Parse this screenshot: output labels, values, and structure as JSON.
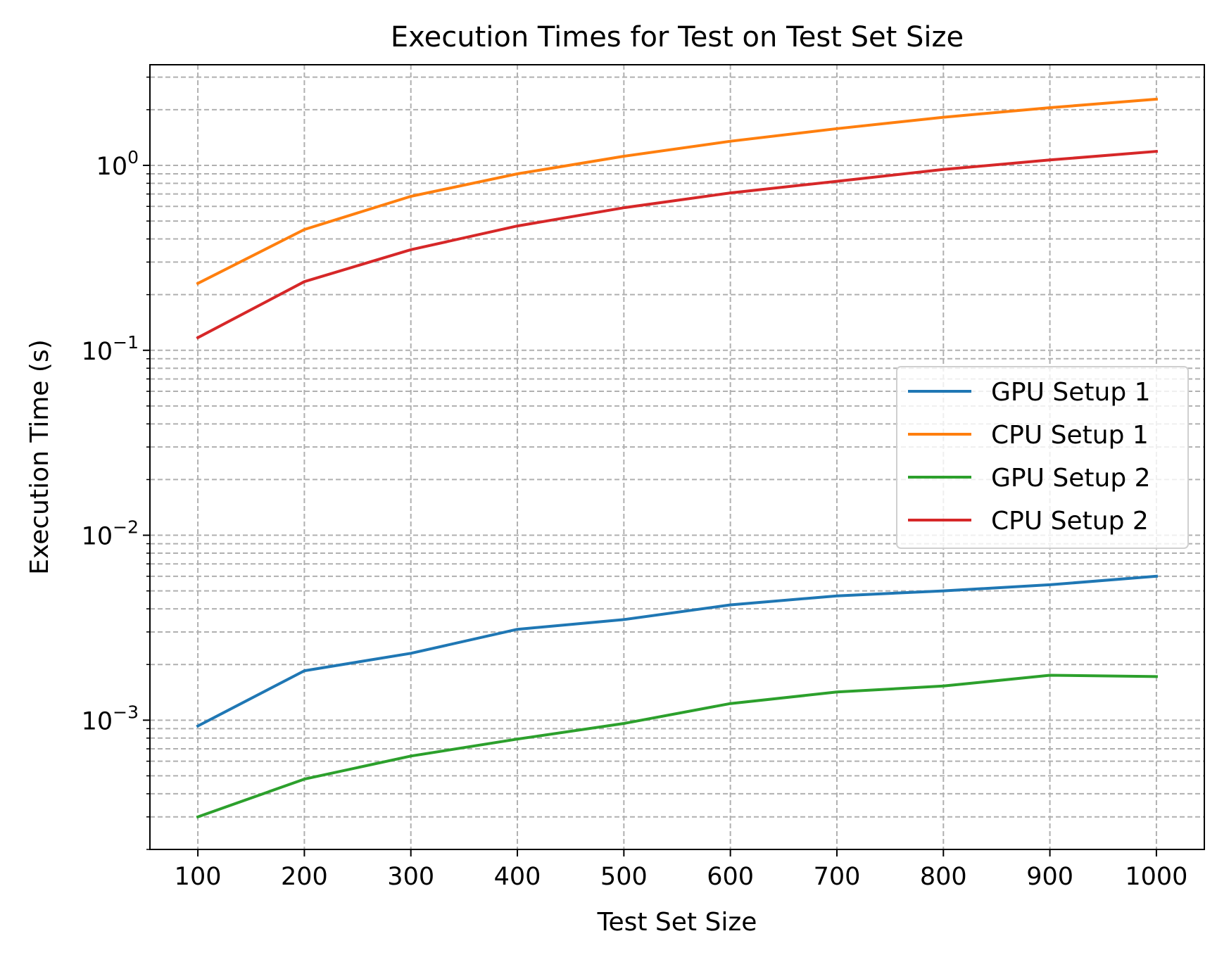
{
  "chart_data": {
    "type": "line",
    "title": "Execution Times for Test on Test Set Size",
    "xlabel": "Test Set Size",
    "ylabel": "Execution Time (s)",
    "x": [
      100,
      200,
      300,
      400,
      500,
      600,
      700,
      800,
      900,
      1000
    ],
    "x_tick_labels": [
      "100",
      "200",
      "300",
      "400",
      "500",
      "600",
      "700",
      "800",
      "900",
      "1000"
    ],
    "y_scale": "log",
    "ylim": [
      0.0002,
      3.5
    ],
    "y_major_ticks": [
      {
        "value": 0.001,
        "base": "10",
        "exp": "−3"
      },
      {
        "value": 0.01,
        "base": "10",
        "exp": "−2"
      },
      {
        "value": 0.1,
        "base": "10",
        "exp": "−1"
      },
      {
        "value": 1,
        "base": "10",
        "exp": "0"
      }
    ],
    "grid": true,
    "grid_minor": true,
    "legend_position": "center-right",
    "series": [
      {
        "name": "GPU Setup 1",
        "color": "#1f77b4",
        "values": [
          0.00093,
          0.00185,
          0.0023,
          0.0031,
          0.0035,
          0.0042,
          0.0047,
          0.005,
          0.0054,
          0.006
        ]
      },
      {
        "name": "CPU Setup 1",
        "color": "#ff7f0e",
        "values": [
          0.23,
          0.45,
          0.68,
          0.9,
          1.12,
          1.35,
          1.58,
          1.82,
          2.05,
          2.28
        ]
      },
      {
        "name": "GPU Setup 2",
        "color": "#2ca02c",
        "values": [
          0.0003,
          0.00048,
          0.00064,
          0.00079,
          0.00096,
          0.00123,
          0.00142,
          0.00153,
          0.00175,
          0.00172
        ]
      },
      {
        "name": "CPU Setup 2",
        "color": "#d62728",
        "values": [
          0.117,
          0.235,
          0.35,
          0.47,
          0.59,
          0.71,
          0.82,
          0.95,
          1.07,
          1.19
        ]
      }
    ]
  }
}
